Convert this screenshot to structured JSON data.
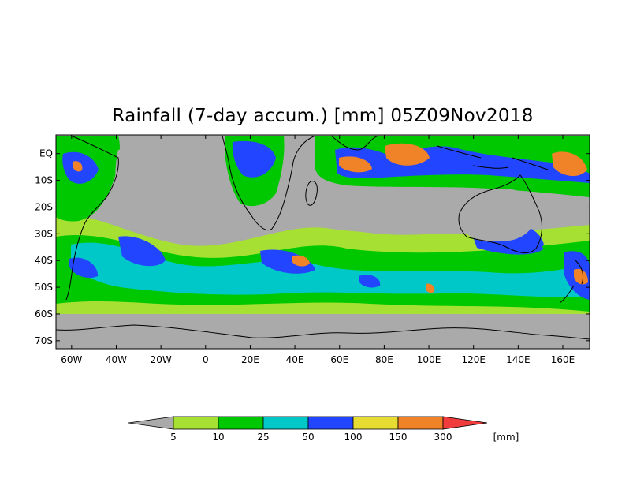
{
  "title": "Rainfall (7-day accum.) [mm] 05Z09Nov2018",
  "map": {
    "projection": "cylindrical",
    "lon_range": [
      -67,
      172
    ],
    "lat_range": [
      -73,
      7
    ],
    "land_color": "#aaaaaa",
    "ocean_color": "#aaaaaa",
    "y_ticks": [
      {
        "label": "EQ",
        "lat": 0
      },
      {
        "label": "10S",
        "lat": -10
      },
      {
        "label": "20S",
        "lat": -20
      },
      {
        "label": "30S",
        "lat": -30
      },
      {
        "label": "40S",
        "lat": -40
      },
      {
        "label": "50S",
        "lat": -50
      },
      {
        "label": "60S",
        "lat": -60
      },
      {
        "label": "70S",
        "lat": -70
      }
    ],
    "x_ticks": [
      {
        "label": "60W",
        "lon": -60
      },
      {
        "label": "40W",
        "lon": -40
      },
      {
        "label": "20W",
        "lon": -20
      },
      {
        "label": "0",
        "lon": 0
      },
      {
        "label": "20E",
        "lon": 20
      },
      {
        "label": "40E",
        "lon": 40
      },
      {
        "label": "60E",
        "lon": 60
      },
      {
        "label": "80E",
        "lon": 80
      },
      {
        "label": "100E",
        "lon": 100
      },
      {
        "label": "120E",
        "lon": 120
      },
      {
        "label": "140E",
        "lon": 140
      },
      {
        "label": "160E",
        "lon": 160
      }
    ]
  },
  "colorbar": {
    "unit": "[mm]",
    "bins": [
      {
        "color": "#a5e033"
      },
      {
        "color": "#00c800"
      },
      {
        "color": "#00c8c8"
      },
      {
        "color": "#2246ff"
      },
      {
        "color": "#e6dc32"
      },
      {
        "color": "#f08228"
      }
    ],
    "under_color": "#aaaaaa",
    "over_color": "#f03c3c",
    "thresholds": [
      "5",
      "10",
      "25",
      "50",
      "100",
      "150",
      "300"
    ]
  }
}
